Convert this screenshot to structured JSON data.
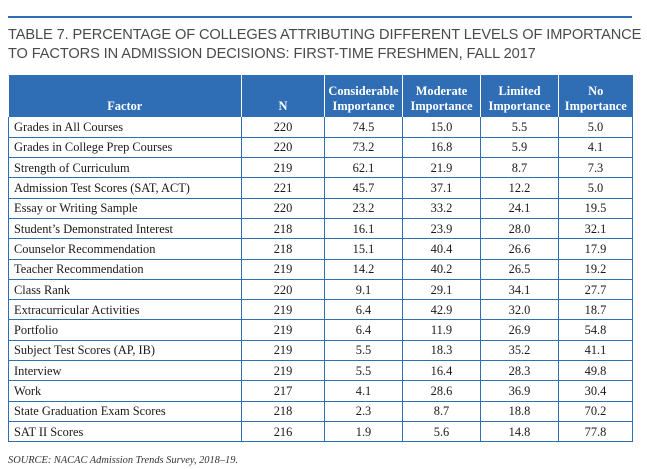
{
  "title": {
    "line1": "TABLE 7. PERCENTAGE OF COLLEGES ATTRIBUTING DIFFERENT LEVELS OF IMPORTANCE",
    "line2": "TO FACTORS IN ADMISSION DECISIONS: FIRST-TIME FRESHMEN, FALL 2017"
  },
  "table": {
    "headers": [
      {
        "lines": [
          "",
          "Factor"
        ]
      },
      {
        "lines": [
          "",
          "N"
        ]
      },
      {
        "lines": [
          "Considerable",
          "Importance"
        ]
      },
      {
        "lines": [
          "Moderate",
          "Importance"
        ]
      },
      {
        "lines": [
          "Limited",
          "Importance"
        ]
      },
      {
        "lines": [
          "No",
          "Importance"
        ]
      }
    ],
    "rows": [
      [
        "Grades in All Courses",
        "220",
        "74.5",
        "15.0",
        "5.5",
        "5.0"
      ],
      [
        "Grades in College Prep Courses",
        "220",
        "73.2",
        "16.8",
        "5.9",
        "4.1"
      ],
      [
        "Strength of Curriculum",
        "219",
        "62.1",
        "21.9",
        "8.7",
        "7.3"
      ],
      [
        "Admission Test Scores (SAT, ACT)",
        "221",
        "45.7",
        "37.1",
        "12.2",
        "5.0"
      ],
      [
        "Essay or Writing Sample",
        "220",
        "23.2",
        "33.2",
        "24.1",
        "19.5"
      ],
      [
        "Student’s Demonstrated Interest",
        "218",
        "16.1",
        "23.9",
        "28.0",
        "32.1"
      ],
      [
        "Counselor Recommendation",
        "218",
        "15.1",
        "40.4",
        "26.6",
        "17.9"
      ],
      [
        "Teacher Recommendation",
        "219",
        "14.2",
        "40.2",
        "26.5",
        "19.2"
      ],
      [
        "Class Rank",
        "220",
        "9.1",
        "29.1",
        "34.1",
        "27.7"
      ],
      [
        "Extracurricular Activities",
        "219",
        "6.4",
        "42.9",
        "32.0",
        "18.7"
      ],
      [
        "Portfolio",
        "219",
        "6.4",
        "11.9",
        "26.9",
        "54.8"
      ],
      [
        "Subject Test Scores (AP, IB)",
        "219",
        "5.5",
        "18.3",
        "35.2",
        "41.1"
      ],
      [
        "Interview",
        "219",
        "5.5",
        "16.4",
        "28.3",
        "49.8"
      ],
      [
        "Work",
        "217",
        "4.1",
        "28.6",
        "36.9",
        "30.4"
      ],
      [
        "State Graduation Exam Scores",
        "218",
        "2.3",
        "8.7",
        "18.8",
        "70.2"
      ],
      [
        "SAT II Scores",
        "216",
        "1.9",
        "5.6",
        "14.8",
        "77.8"
      ]
    ]
  },
  "source": "SOURCE: NACAC Admission Trends Survey, 2018–19.",
  "colors": {
    "accent": "#2f6db5",
    "title_text": "#4a4a4a"
  }
}
